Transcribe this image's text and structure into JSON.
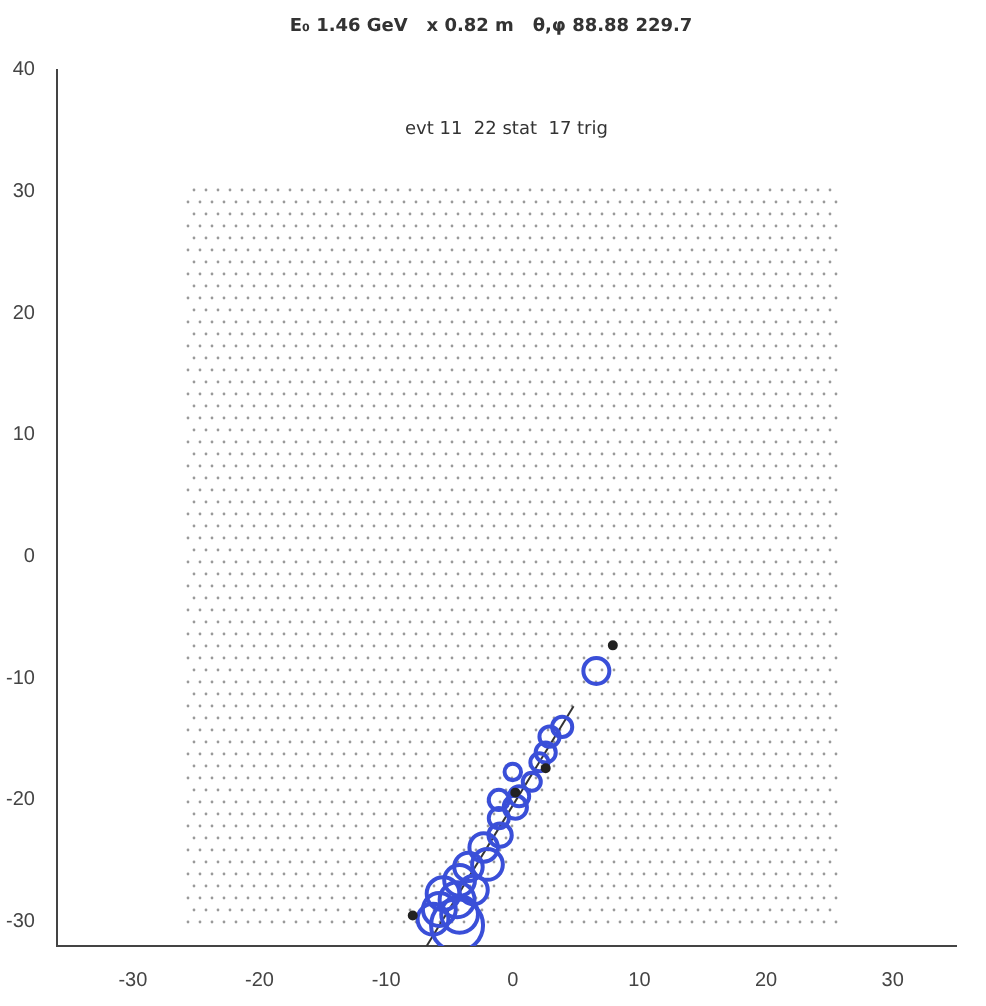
{
  "chart_data": {
    "type": "bubble",
    "title": "E₀ 1.46 GeV   x 0.82 m   θ,φ 88.88 229.7",
    "subtitle": "evt 11  22 stat  17 trig",
    "xlim": [
      -36,
      35
    ],
    "ylim": [
      -32,
      40
    ],
    "xticks": [
      -30,
      -20,
      -10,
      0,
      10,
      20,
      30
    ],
    "yticks": [
      -30,
      -20,
      -10,
      0,
      10,
      20,
      30,
      40
    ],
    "grid": false,
    "legend": false,
    "series": [
      {
        "color": "#3a4fd8",
        "x": [
          6.6,
          3.9,
          2.9,
          2.6,
          2.1,
          1.5,
          0,
          0.5,
          -1.1,
          0.2,
          -1.1,
          -1.0,
          -2.3,
          -2.0,
          -3.5,
          -4.2,
          -3.1,
          -5.5,
          -4.4,
          -5.8,
          -4.2,
          -6.3,
          -4.4
        ],
        "values": [
          -9.4,
          -14.0,
          -14.8,
          -16.1,
          -16.9,
          -18.5,
          -17.7,
          -19.7,
          -20.0,
          -20.6,
          -21.5,
          -22.9,
          -23.9,
          -25.3,
          -25.5,
          -26.6,
          -27.4,
          -27.7,
          -28.2,
          -29.0,
          -29.4,
          -29.8,
          -30.3
        ],
        "sizes": [
          0.25,
          0.15,
          0.15,
          0.15,
          0.12,
          0.12,
          0.1,
          0.15,
          0.15,
          0.2,
          0.15,
          0.2,
          0.3,
          0.35,
          0.3,
          0.35,
          0.3,
          0.4,
          0.45,
          0.4,
          0.5,
          0.35,
          1
        ]
      },
      {
        "type": "scatter",
        "color": "#222222",
        "marker": "circle",
        "x": [
          7.9,
          2.6,
          0.2,
          -7.9
        ],
        "values": [
          -7.3,
          -17.4,
          -19.4,
          -29.5
        ]
      },
      {
        "type": "line",
        "color": "#333333",
        "x": [
          -6.8,
          4.8
        ],
        "values": [
          -32,
          -12.3
        ]
      }
    ]
  }
}
